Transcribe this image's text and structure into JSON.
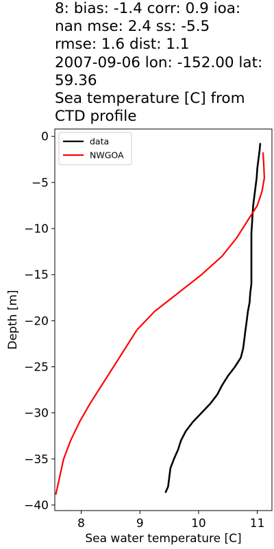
{
  "title_lines": [
    "8: bias: -1.4  corr: 0.9  ioa:",
    "nan  mse: 2.4  ss: -5.5",
    "rmse: 1.6  dist: 1.1",
    "2007-09-06 lon: -152.00 lat:",
    "59.36",
    "Sea temperature [C] from",
    "CTD profile"
  ],
  "chart_data": {
    "type": "line",
    "xlabel": "Sea water temperature [C]",
    "ylabel": "Depth [m]",
    "xlim": [
      7.55,
      11.25
    ],
    "ylim": [
      -40.6,
      0.8
    ],
    "xticks": [
      8,
      9,
      10,
      11
    ],
    "xtick_labels": [
      "8",
      "9",
      "10",
      "11"
    ],
    "yticks": [
      0,
      -5,
      -10,
      -15,
      -20,
      -25,
      -30,
      -35,
      -40
    ],
    "ytick_labels": [
      "0",
      "−5",
      "−10",
      "−15",
      "−20",
      "−25",
      "−30",
      "−35",
      "−40"
    ],
    "legend": {
      "placement": "top-left"
    },
    "grid": false,
    "series": [
      {
        "name": "data",
        "color": "#000000",
        "points": [
          [
            11.05,
            -0.8
          ],
          [
            11.04,
            -1.5
          ],
          [
            11.02,
            -2.5
          ],
          [
            11.0,
            -3.5
          ],
          [
            10.99,
            -4.5
          ],
          [
            10.97,
            -5.5
          ],
          [
            10.95,
            -6.5
          ],
          [
            10.93,
            -7.5
          ],
          [
            10.92,
            -8.5
          ],
          [
            10.91,
            -9.5
          ],
          [
            10.9,
            -10.5
          ],
          [
            10.9,
            -12.0
          ],
          [
            10.9,
            -13.5
          ],
          [
            10.9,
            -15.0
          ],
          [
            10.9,
            -16.0
          ],
          [
            10.88,
            -17.0
          ],
          [
            10.87,
            -18.0
          ],
          [
            10.84,
            -19.0
          ],
          [
            10.82,
            -20.0
          ],
          [
            10.8,
            -21.0
          ],
          [
            10.78,
            -22.0
          ],
          [
            10.76,
            -23.0
          ],
          [
            10.72,
            -24.0
          ],
          [
            10.62,
            -25.0
          ],
          [
            10.5,
            -26.0
          ],
          [
            10.4,
            -27.0
          ],
          [
            10.32,
            -28.0
          ],
          [
            10.2,
            -29.0
          ],
          [
            10.05,
            -30.0
          ],
          [
            9.9,
            -31.0
          ],
          [
            9.78,
            -32.0
          ],
          [
            9.7,
            -33.0
          ],
          [
            9.65,
            -34.0
          ],
          [
            9.58,
            -35.0
          ],
          [
            9.52,
            -36.0
          ],
          [
            9.5,
            -37.0
          ],
          [
            9.48,
            -38.0
          ],
          [
            9.44,
            -38.6
          ]
        ]
      },
      {
        "name": "NWGOA",
        "color": "#ff0000",
        "points": [
          [
            11.1,
            -1.8
          ],
          [
            11.11,
            -3.0
          ],
          [
            11.12,
            -4.5
          ],
          [
            11.08,
            -6.0
          ],
          [
            11.0,
            -7.5
          ],
          [
            10.85,
            -9.0
          ],
          [
            10.65,
            -11.0
          ],
          [
            10.4,
            -13.0
          ],
          [
            10.05,
            -15.0
          ],
          [
            9.65,
            -17.0
          ],
          [
            9.25,
            -19.0
          ],
          [
            8.95,
            -21.0
          ],
          [
            8.75,
            -23.0
          ],
          [
            8.55,
            -25.0
          ],
          [
            8.35,
            -27.0
          ],
          [
            8.15,
            -29.0
          ],
          [
            7.97,
            -31.0
          ],
          [
            7.82,
            -33.0
          ],
          [
            7.7,
            -35.0
          ],
          [
            7.63,
            -37.0
          ],
          [
            7.57,
            -38.8
          ]
        ]
      }
    ]
  }
}
